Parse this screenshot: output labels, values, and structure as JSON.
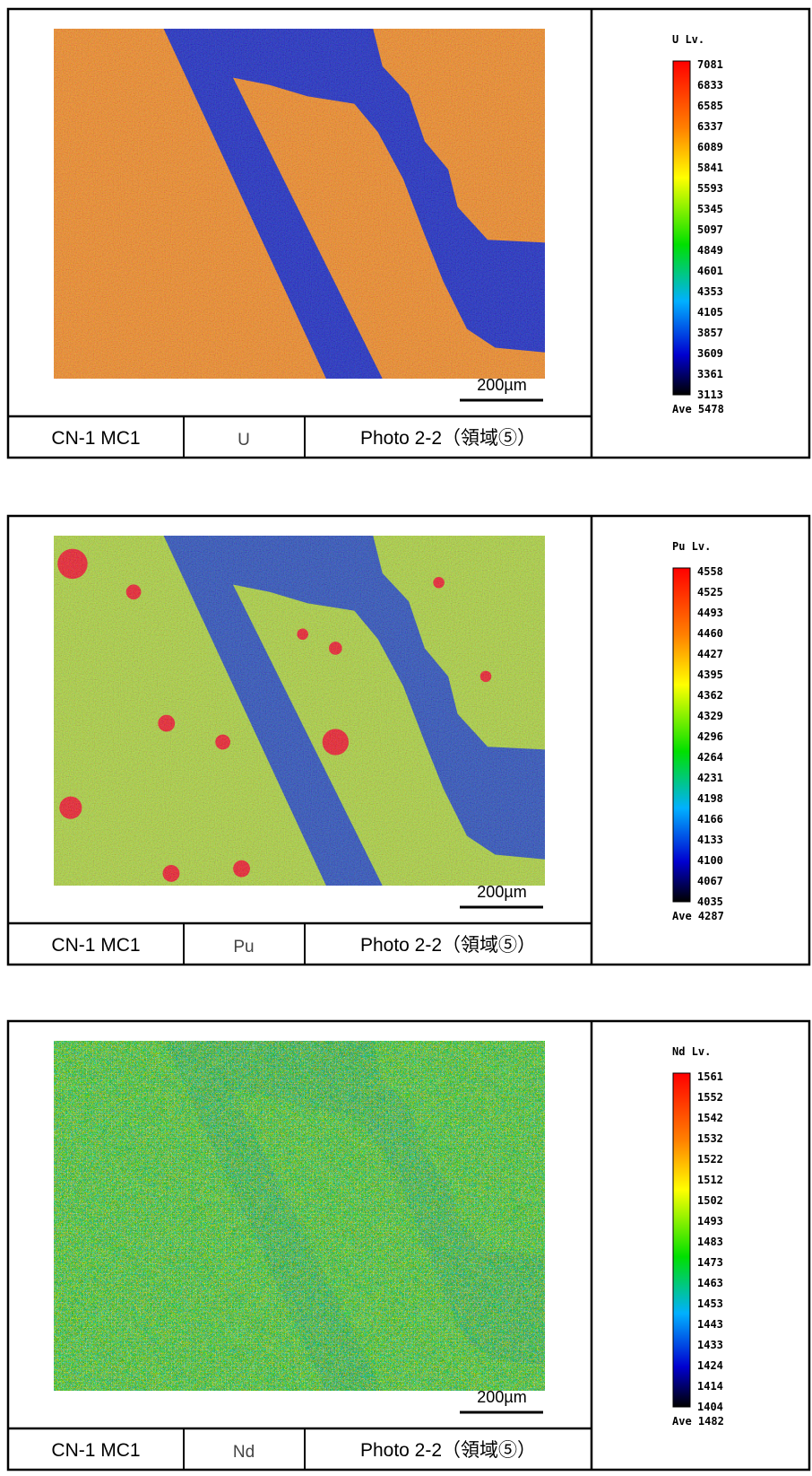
{
  "panels": [
    {
      "map": {
        "legend_title": "U Lv.",
        "levels": [
          7081,
          6833,
          6585,
          6337,
          6089,
          5841,
          5593,
          5345,
          5097,
          4849,
          4601,
          4353,
          4105,
          3857,
          3609,
          3361,
          3113
        ],
        "average": "Ave 5478",
        "scale_bar": "200µm"
      },
      "footer": {
        "sample": "CN-1 MC1",
        "element": "U",
        "photo": "Photo 2-2（領域⑤）"
      }
    },
    {
      "map": {
        "legend_title": "Pu Lv.",
        "levels": [
          4558,
          4525,
          4493,
          4460,
          4427,
          4395,
          4362,
          4329,
          4296,
          4264,
          4231,
          4198,
          4166,
          4133,
          4100,
          4067,
          4035
        ],
        "average": "Ave 4287",
        "scale_bar": "200µm"
      },
      "footer": {
        "sample": "CN-1 MC1",
        "element": "Pu",
        "photo": "Photo 2-2（領域⑤）"
      }
    },
    {
      "map": {
        "legend_title": "Nd Lv.",
        "levels": [
          1561,
          1552,
          1542,
          1532,
          1522,
          1512,
          1502,
          1493,
          1483,
          1473,
          1463,
          1453,
          1443,
          1433,
          1424,
          1414,
          1404
        ],
        "average": "Ave 1482",
        "scale_bar": "200µm"
      },
      "footer": {
        "sample": "CN-1 MC1",
        "element": "Nd",
        "photo": "Photo 2-2（領域⑤）"
      }
    }
  ]
}
